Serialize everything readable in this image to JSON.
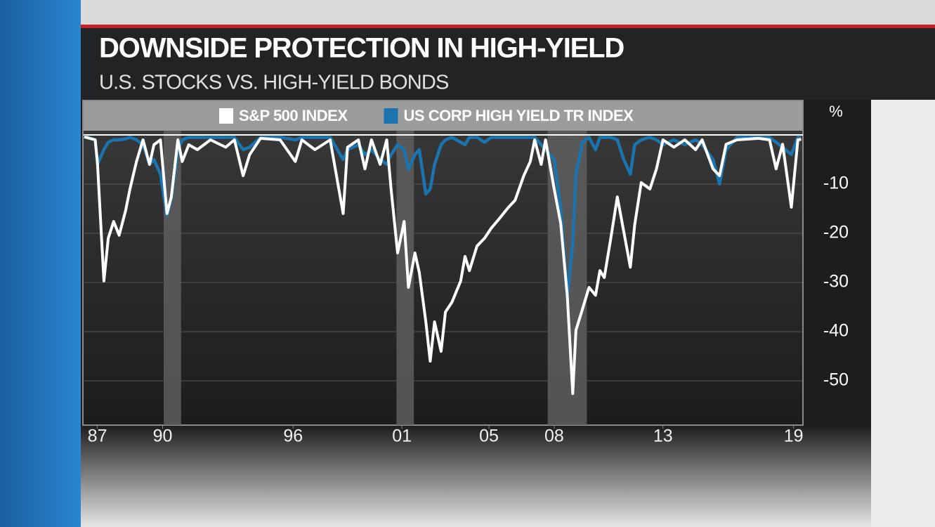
{
  "chart_data": {
    "type": "line",
    "title": "DOWNSIDE PROTECTION IN HIGH-YIELD",
    "subtitle": "U.S. STOCKS VS. HIGH-YIELD BONDS",
    "ylabel": "%",
    "legend": "top",
    "grid": true,
    "xlim": [
      1986.9,
      2019.9
    ],
    "ylim": [
      -59,
      0
    ],
    "yticks": [
      -10,
      -20,
      -30,
      -40,
      -50
    ],
    "xticks": [
      {
        "value": 1987,
        "label": "87"
      },
      {
        "value": 1990,
        "label": "90"
      },
      {
        "value": 1996,
        "label": "96"
      },
      {
        "value": 2001,
        "label": "01"
      },
      {
        "value": 2005,
        "label": "05"
      },
      {
        "value": 2008,
        "label": "08"
      },
      {
        "value": 2013,
        "label": "13"
      },
      {
        "value": 2019,
        "label": "19"
      }
    ],
    "shaded_periods": [
      [
        1990.55,
        1991.35
      ],
      [
        2001.25,
        2002.05
      ],
      [
        2008.2,
        2010.0
      ]
    ],
    "x": [
      1986.9,
      1987.4,
      1987.5,
      1987.8,
      1988.0,
      1988.25,
      1988.5,
      1988.8,
      1989.0,
      1989.3,
      1989.6,
      1989.9,
      1990.1,
      1990.4,
      1990.7,
      1990.9,
      1991.2,
      1991.4,
      1991.7,
      1992.1,
      1992.7,
      1993.4,
      1993.8,
      1994.2,
      1994.5,
      1995.0,
      1995.9,
      1996.6,
      1996.9,
      1997.5,
      1998.2,
      1998.8,
      1999.0,
      1999.5,
      1999.8,
      2000.1,
      2000.5,
      2000.8,
      2001.0,
      2001.3,
      2001.6,
      2001.8,
      2002.1,
      2002.3,
      2002.6,
      2002.8,
      2003.0,
      2003.3,
      2003.5,
      2003.8,
      2004.2,
      2004.4,
      2004.6,
      2004.95,
      2005.3,
      2005.6,
      2006.0,
      2006.4,
      2006.7,
      2007.1,
      2007.4,
      2007.6,
      2007.9,
      2008.1,
      2008.5,
      2008.8,
      2009.1,
      2009.35,
      2009.5,
      2009.8,
      2010.1,
      2010.4,
      2010.6,
      2010.8,
      2011.1,
      2011.4,
      2011.7,
      2012.0,
      2012.2,
      2012.5,
      2012.9,
      2013.2,
      2013.5,
      2014.0,
      2014.5,
      2015.0,
      2015.3,
      2015.8,
      2016.1,
      2016.4,
      2016.9,
      2017.9,
      2018.4,
      2018.7,
      2019.0,
      2019.4,
      2019.7,
      2019.85
    ],
    "series": [
      {
        "name": "US CORP HIGH YIELD TR INDEX",
        "color": "#1b74ad",
        "values": [
          -0.3,
          -1,
          -6,
          -3,
          -1.5,
          -1,
          -1,
          -0.8,
          -0.5,
          -1,
          -2,
          -6,
          -5,
          -8,
          -16.5,
          -13,
          -3,
          -1,
          -0.5,
          -0.5,
          -0.5,
          -0.5,
          -0.5,
          -3,
          -2.5,
          -0.5,
          -0.5,
          -1,
          -0.5,
          -0.5,
          -0.5,
          -5,
          -3,
          -2,
          -4,
          -3,
          -5,
          -6,
          -4,
          -2,
          -3,
          -7,
          -4,
          -3,
          -12,
          -11,
          -6,
          -2,
          -1,
          -0.5,
          -1.5,
          -2,
          -0.5,
          -0.5,
          -1.5,
          -0.5,
          -0.5,
          -0.5,
          -0.5,
          -0.5,
          -0.5,
          -0.5,
          -2,
          -3,
          -5,
          -15,
          -33,
          -22,
          -8,
          -1.5,
          -0.5,
          -3,
          -0.5,
          -0.5,
          -0.5,
          -1,
          -5,
          -8,
          -2,
          -1,
          -0.5,
          -1,
          -2,
          -1,
          -2,
          -1,
          -2,
          -5,
          -10,
          -3,
          -0.5,
          -0.5,
          -0.5,
          -1.5,
          -2.5,
          -4,
          -0.5,
          -0.5
        ]
      },
      {
        "name": "S&P 500 INDEX",
        "color": "#ffffff",
        "values": [
          -0.4,
          -1,
          -5.4,
          -29.7,
          -21,
          -17.6,
          -20.4,
          -15.4,
          -11,
          -5.4,
          -1,
          -6,
          -2,
          -1,
          -16,
          -12.6,
          -1,
          -5.4,
          -2,
          -3,
          -1,
          -2.5,
          -1,
          -8.3,
          -4,
          -0.7,
          -1,
          -5.4,
          -1,
          -3,
          -1,
          -16,
          -2.5,
          -1,
          -6.9,
          -1,
          -6,
          -1,
          -11,
          -24,
          -17.6,
          -31,
          -24,
          -28,
          -38,
          -46,
          -38,
          -44,
          -36,
          -34,
          -29.7,
          -24.7,
          -27.6,
          -22.6,
          -21,
          -19,
          -16.9,
          -14.7,
          -13.3,
          -8.3,
          -5.4,
          -1,
          -6,
          -1,
          -11,
          -18,
          -32.6,
          -52.6,
          -39.7,
          -35.4,
          -31,
          -32.6,
          -27.6,
          -29,
          -21,
          -12.6,
          -19.7,
          -26.9,
          -18.3,
          -9.7,
          -11,
          -6.9,
          -1,
          -2.5,
          -1,
          -3,
          -1,
          -6.9,
          -8.3,
          -1.9,
          -1,
          -0.7,
          -1,
          -6.9,
          -1.9,
          -14.7,
          -1,
          -0.9
        ]
      }
    ]
  }
}
